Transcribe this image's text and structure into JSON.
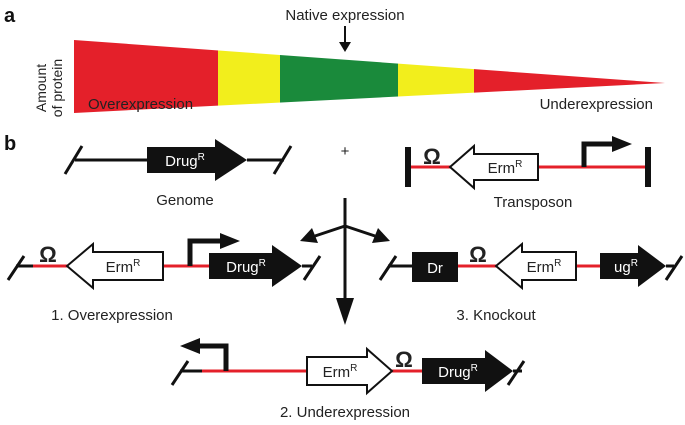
{
  "panel_a": {
    "letter": "a",
    "ylabel_line1": "Amount",
    "ylabel_line2": "of protein",
    "native_label": "Native expression",
    "left_label": "Overexpression",
    "right_label": "Underexpression",
    "colors": {
      "red": "#e4202a",
      "yellow": "#f2ee1c",
      "green": "#1a8a3b"
    }
  },
  "panel_b": {
    "letter": "b",
    "genome": {
      "gene": "Drug",
      "sup": "R",
      "caption": "Genome"
    },
    "plus": "+",
    "transposon": {
      "terminator": "Ω",
      "gene": "Erm",
      "sup": "R",
      "caption": "Transposon"
    },
    "overexpression": {
      "terminator": "Ω",
      "gene1": "Erm",
      "sup1": "R",
      "gene2": "Drug",
      "sup2": "R",
      "caption": "1. Overexpression"
    },
    "underexpression": {
      "gene1": "Erm",
      "sup1": "R",
      "terminator": "Ω",
      "gene2": "Drug",
      "sup2": "R",
      "caption": "2. Underexpression"
    },
    "knockout": {
      "part1": "Dr",
      "terminator": "Ω",
      "gene": "Erm",
      "sup": "R",
      "part2": "ug",
      "sup2": "R",
      "caption": "3. Knockout"
    },
    "colors": {
      "line_red": "#e4202a",
      "ink": "#111111"
    }
  }
}
